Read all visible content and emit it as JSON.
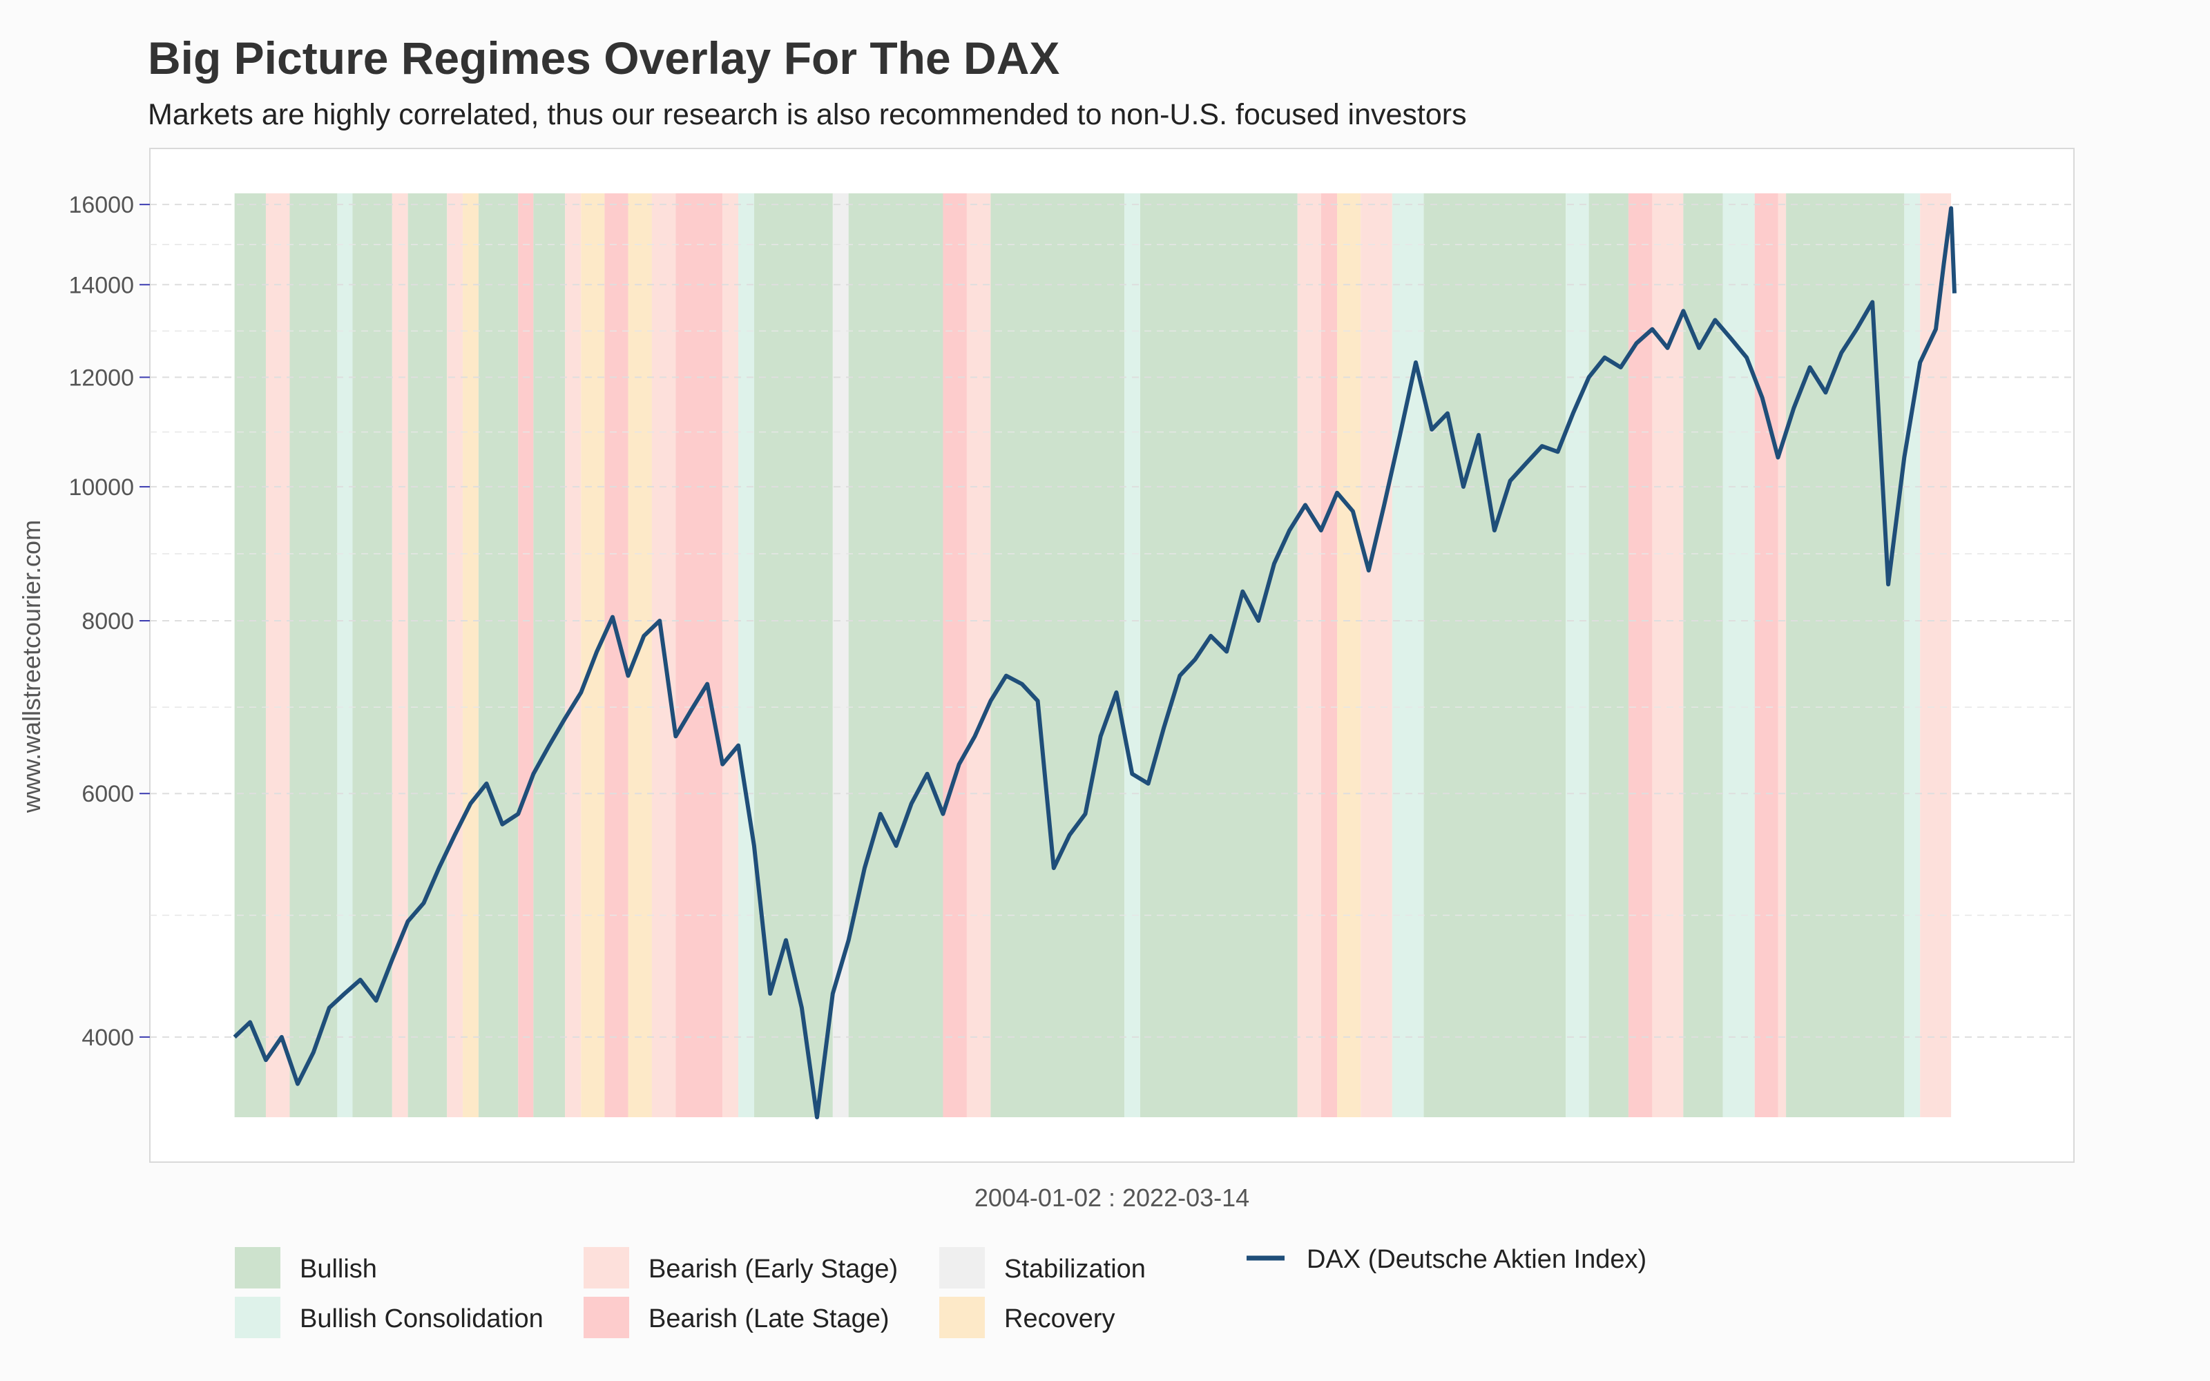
{
  "title": "Big Picture Regimes Overlay For The DAX",
  "subtitle": "Markets are highly correlated, thus our research is also recommended to non-U.S. focused investors",
  "chart_data": {
    "type": "line",
    "ylabel": "www.wallstreetcourier.com",
    "xlabel": "2004-01-02 : 2022-03-14",
    "y_scale": "log",
    "ylim": [
      3500,
      16300
    ],
    "y_ticks": [
      4000,
      6000,
      8000,
      10000,
      12000,
      14000,
      16000
    ],
    "y_tick_labels": [
      "4000",
      "6000",
      "8000",
      "10000",
      "12000",
      "14000",
      "16000"
    ],
    "x_range": [
      "2004-01-02",
      "2022-03-14"
    ],
    "grid": true,
    "legend_position": "bottom",
    "regime_colors": {
      "bullish": "#cde2cd",
      "bullish_consolidation": "#def2ea",
      "bearish_early": "#fde0db",
      "bearish_late": "#fdcccc",
      "stabilization": "#efefef",
      "recovery": "#fde9c8"
    },
    "regime_legend": [
      {
        "key": "bullish",
        "label": "Bullish"
      },
      {
        "key": "bullish_consolidation",
        "label": "Bullish Consolidation"
      },
      {
        "key": "bearish_early",
        "label": "Bearish (Early Stage)"
      },
      {
        "key": "bearish_late",
        "label": "Bearish (Late Stage)"
      },
      {
        "key": "stabilization",
        "label": "Stabilization"
      },
      {
        "key": "recovery",
        "label": "Recovery"
      }
    ],
    "regimes": [
      {
        "start": "2004-01",
        "end": "2004-05",
        "regime": "bullish"
      },
      {
        "start": "2004-05",
        "end": "2004-08",
        "regime": "bearish_early"
      },
      {
        "start": "2004-08",
        "end": "2005-02",
        "regime": "bullish"
      },
      {
        "start": "2005-02",
        "end": "2005-04",
        "regime": "bullish_consolidation"
      },
      {
        "start": "2005-04",
        "end": "2005-09",
        "regime": "bullish"
      },
      {
        "start": "2005-09",
        "end": "2005-11",
        "regime": "bearish_early"
      },
      {
        "start": "2005-11",
        "end": "2006-04",
        "regime": "bullish"
      },
      {
        "start": "2006-04",
        "end": "2006-06",
        "regime": "bearish_early"
      },
      {
        "start": "2006-06",
        "end": "2006-08",
        "regime": "recovery"
      },
      {
        "start": "2006-08",
        "end": "2007-01",
        "regime": "bullish"
      },
      {
        "start": "2007-01",
        "end": "2007-03",
        "regime": "bearish_late"
      },
      {
        "start": "2007-03",
        "end": "2007-07",
        "regime": "bullish"
      },
      {
        "start": "2007-07",
        "end": "2007-09",
        "regime": "bearish_early"
      },
      {
        "start": "2007-09",
        "end": "2007-12",
        "regime": "recovery"
      },
      {
        "start": "2007-12",
        "end": "2008-03",
        "regime": "bearish_late"
      },
      {
        "start": "2008-03",
        "end": "2008-06",
        "regime": "recovery"
      },
      {
        "start": "2008-06",
        "end": "2008-09",
        "regime": "bearish_early"
      },
      {
        "start": "2008-09",
        "end": "2009-03",
        "regime": "bearish_late"
      },
      {
        "start": "2009-03",
        "end": "2009-05",
        "regime": "bearish_early"
      },
      {
        "start": "2009-05",
        "end": "2009-07",
        "regime": "bullish_consolidation"
      },
      {
        "start": "2009-07",
        "end": "2010-05",
        "regime": "bullish"
      },
      {
        "start": "2010-05",
        "end": "2010-07",
        "regime": "stabilization"
      },
      {
        "start": "2010-07",
        "end": "2011-07",
        "regime": "bullish"
      },
      {
        "start": "2011-07",
        "end": "2011-10",
        "regime": "bearish_late"
      },
      {
        "start": "2011-10",
        "end": "2012-01",
        "regime": "bearish_early"
      },
      {
        "start": "2012-01",
        "end": "2013-06",
        "regime": "bullish"
      },
      {
        "start": "2013-06",
        "end": "2013-08",
        "regime": "bullish_consolidation"
      },
      {
        "start": "2013-08",
        "end": "2015-04",
        "regime": "bullish"
      },
      {
        "start": "2015-04",
        "end": "2015-07",
        "regime": "bearish_early"
      },
      {
        "start": "2015-07",
        "end": "2015-09",
        "regime": "bearish_late"
      },
      {
        "start": "2015-09",
        "end": "2015-12",
        "regime": "recovery"
      },
      {
        "start": "2015-12",
        "end": "2016-04",
        "regime": "bearish_early"
      },
      {
        "start": "2016-04",
        "end": "2016-08",
        "regime": "bullish_consolidation"
      },
      {
        "start": "2016-08",
        "end": "2018-02",
        "regime": "bullish"
      },
      {
        "start": "2018-02",
        "end": "2018-05",
        "regime": "bullish_consolidation"
      },
      {
        "start": "2018-05",
        "end": "2018-10",
        "regime": "bullish"
      },
      {
        "start": "2018-10",
        "end": "2019-01",
        "regime": "bearish_late"
      },
      {
        "start": "2019-01",
        "end": "2019-05",
        "regime": "bearish_early"
      },
      {
        "start": "2019-05",
        "end": "2019-10",
        "regime": "bullish"
      },
      {
        "start": "2019-10",
        "end": "2020-02",
        "regime": "bullish_consolidation"
      },
      {
        "start": "2020-02",
        "end": "2020-05",
        "regime": "bearish_late"
      },
      {
        "start": "2020-05",
        "end": "2020-06",
        "regime": "bearish_early"
      },
      {
        "start": "2020-06",
        "end": "2021-09",
        "regime": "bullish"
      },
      {
        "start": "2021-09",
        "end": "2021-11",
        "regime": "bullish_consolidation"
      },
      {
        "start": "2021-11",
        "end": "2022-01",
        "regime": "bearish_early"
      },
      {
        "start": "2022-01",
        "end": "2022-03",
        "regime": "bearish_early"
      }
    ],
    "series": [
      {
        "name": "DAX (Deutsche Aktien Index)",
        "color": "#1f4e79",
        "points": [
          [
            "2004-01",
            4000
          ],
          [
            "2004-03",
            4100
          ],
          [
            "2004-05",
            3850
          ],
          [
            "2004-07",
            4000
          ],
          [
            "2004-09",
            3700
          ],
          [
            "2004-11",
            3900
          ],
          [
            "2005-01",
            4200
          ],
          [
            "2005-03",
            4300
          ],
          [
            "2005-05",
            4400
          ],
          [
            "2005-07",
            4250
          ],
          [
            "2005-09",
            4550
          ],
          [
            "2005-11",
            4850
          ],
          [
            "2006-01",
            5000
          ],
          [
            "2006-03",
            5300
          ],
          [
            "2006-05",
            5600
          ],
          [
            "2006-07",
            5900
          ],
          [
            "2006-09",
            6100
          ],
          [
            "2006-11",
            5700
          ],
          [
            "2007-01",
            5800
          ],
          [
            "2007-03",
            6200
          ],
          [
            "2007-05",
            6500
          ],
          [
            "2007-07",
            6800
          ],
          [
            "2007-09",
            7100
          ],
          [
            "2007-11",
            7600
          ],
          [
            "2008-01",
            8050
          ],
          [
            "2008-03",
            7300
          ],
          [
            "2008-05",
            7800
          ],
          [
            "2008-07",
            8000
          ],
          [
            "2008-09",
            6600
          ],
          [
            "2008-11",
            6900
          ],
          [
            "2009-01",
            7200
          ],
          [
            "2009-03",
            6300
          ],
          [
            "2009-05",
            6500
          ],
          [
            "2009-07",
            5500
          ],
          [
            "2009-09",
            4300
          ],
          [
            "2009-11",
            4700
          ],
          [
            "2010-01",
            4200
          ],
          [
            "2010-03",
            3500
          ],
          [
            "2010-05",
            4300
          ],
          [
            "2010-07",
            4700
          ],
          [
            "2010-09",
            5300
          ],
          [
            "2010-11",
            5800
          ],
          [
            "2011-01",
            5500
          ],
          [
            "2011-03",
            5900
          ],
          [
            "2011-05",
            6200
          ],
          [
            "2011-07",
            5800
          ],
          [
            "2011-09",
            6300
          ],
          [
            "2011-11",
            6600
          ],
          [
            "2012-01",
            7000
          ],
          [
            "2012-03",
            7300
          ],
          [
            "2012-05",
            7200
          ],
          [
            "2012-07",
            7000
          ],
          [
            "2012-09",
            5300
          ],
          [
            "2012-11",
            5600
          ],
          [
            "2013-01",
            5800
          ],
          [
            "2013-03",
            6600
          ],
          [
            "2013-05",
            7100
          ],
          [
            "2013-07",
            6200
          ],
          [
            "2013-09",
            6100
          ],
          [
            "2013-11",
            6700
          ],
          [
            "2014-01",
            7300
          ],
          [
            "2014-03",
            7500
          ],
          [
            "2014-05",
            7800
          ],
          [
            "2014-07",
            7600
          ],
          [
            "2014-09",
            8400
          ],
          [
            "2014-11",
            8000
          ],
          [
            "2015-01",
            8800
          ],
          [
            "2015-03",
            9300
          ],
          [
            "2015-05",
            9700
          ],
          [
            "2015-07",
            9300
          ],
          [
            "2015-09",
            9900
          ],
          [
            "2015-11",
            9600
          ],
          [
            "2016-01",
            8700
          ],
          [
            "2016-03",
            9700
          ],
          [
            "2016-05",
            10900
          ],
          [
            "2016-07",
            12300
          ],
          [
            "2016-09",
            11000
          ],
          [
            "2016-11",
            11300
          ],
          [
            "2017-01",
            10000
          ],
          [
            "2017-03",
            10900
          ],
          [
            "2017-05",
            9300
          ],
          [
            "2017-07",
            10100
          ],
          [
            "2017-09",
            10400
          ],
          [
            "2017-11",
            10700
          ],
          [
            "2018-01",
            10600
          ],
          [
            "2018-03",
            11300
          ],
          [
            "2018-05",
            12000
          ],
          [
            "2018-07",
            12400
          ],
          [
            "2018-09",
            12200
          ],
          [
            "2018-11",
            12700
          ],
          [
            "2019-01",
            13000
          ],
          [
            "2019-03",
            12600
          ],
          [
            "2019-05",
            13400
          ],
          [
            "2019-07",
            12600
          ],
          [
            "2019-09",
            13200
          ],
          [
            "2019-11",
            12800
          ],
          [
            "2020-01",
            12400
          ],
          [
            "2020-03",
            11600
          ],
          [
            "2020-05",
            10500
          ],
          [
            "2020-07",
            11400
          ],
          [
            "2020-09",
            12200
          ],
          [
            "2020-11",
            11700
          ],
          [
            "2021-01",
            12500
          ],
          [
            "2021-03",
            13000
          ],
          [
            "2021-05",
            13600
          ],
          [
            "2021-07",
            8500
          ],
          [
            "2021-09",
            10500
          ],
          [
            "2021-11",
            12300
          ],
          [
            "2022-01",
            13000
          ],
          [
            "2022-02",
            14500
          ],
          [
            "2022-03",
            15900
          ],
          [
            "2022-03-14",
            13800
          ]
        ]
      }
    ]
  }
}
